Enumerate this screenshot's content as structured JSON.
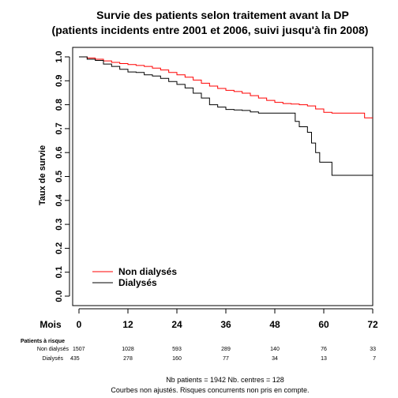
{
  "chart_data": {
    "type": "line",
    "title_line1": "Survie des patients selon traitement avant la DP",
    "title_line2": "(patients incidents entre 2001 et 2006, suivi jusqu'à fin 2008)",
    "ylabel": "Taux de survie",
    "xlabel": "Mois",
    "xlim": [
      0,
      72
    ],
    "ylim": [
      0,
      1
    ],
    "x_ticks": [
      "0",
      "12",
      "24",
      "36",
      "48",
      "60",
      "72"
    ],
    "x_tick_values": [
      0,
      12,
      24,
      36,
      48,
      60,
      72
    ],
    "y_ticks": [
      "0.0",
      "0.1",
      "0.2",
      "0.3",
      "0.4",
      "0.5",
      "0.6",
      "0.7",
      "0.8",
      "0.9",
      "1.0"
    ],
    "y_tick_values": [
      0,
      0.1,
      0.2,
      0.3,
      0.4,
      0.5,
      0.6,
      0.7,
      0.8,
      0.9,
      1.0
    ],
    "legend_position": "bottom-left",
    "series": [
      {
        "name": "Non dialysés",
        "color": "#ff0000",
        "step": true,
        "points": [
          [
            0,
            1.0
          ],
          [
            2,
            0.995
          ],
          [
            4,
            0.99
          ],
          [
            6,
            0.983
          ],
          [
            8,
            0.977
          ],
          [
            10,
            0.972
          ],
          [
            12,
            0.968
          ],
          [
            14,
            0.964
          ],
          [
            16,
            0.96
          ],
          [
            18,
            0.953
          ],
          [
            20,
            0.945
          ],
          [
            22,
            0.935
          ],
          [
            24,
            0.925
          ],
          [
            26,
            0.915
          ],
          [
            28,
            0.903
          ],
          [
            30,
            0.89
          ],
          [
            32,
            0.878
          ],
          [
            34,
            0.868
          ],
          [
            36,
            0.86
          ],
          [
            38,
            0.855
          ],
          [
            40,
            0.848
          ],
          [
            42,
            0.838
          ],
          [
            44,
            0.828
          ],
          [
            46,
            0.818
          ],
          [
            48,
            0.81
          ],
          [
            50,
            0.805
          ],
          [
            52,
            0.803
          ],
          [
            54,
            0.8
          ],
          [
            56,
            0.795
          ],
          [
            58,
            0.782
          ],
          [
            60,
            0.768
          ],
          [
            62,
            0.765
          ],
          [
            64,
            0.765
          ],
          [
            66,
            0.765
          ],
          [
            68,
            0.765
          ],
          [
            70,
            0.745
          ],
          [
            72,
            0.745
          ]
        ]
      },
      {
        "name": "Dialysés",
        "color": "#000000",
        "step": true,
        "points": [
          [
            0,
            1.0
          ],
          [
            2,
            0.99
          ],
          [
            4,
            0.985
          ],
          [
            6,
            0.97
          ],
          [
            8,
            0.96
          ],
          [
            10,
            0.948
          ],
          [
            12,
            0.937
          ],
          [
            14,
            0.935
          ],
          [
            16,
            0.925
          ],
          [
            18,
            0.92
          ],
          [
            20,
            0.91
          ],
          [
            22,
            0.897
          ],
          [
            24,
            0.885
          ],
          [
            26,
            0.87
          ],
          [
            28,
            0.848
          ],
          [
            30,
            0.828
          ],
          [
            32,
            0.8
          ],
          [
            34,
            0.79
          ],
          [
            36,
            0.78
          ],
          [
            38,
            0.778
          ],
          [
            40,
            0.776
          ],
          [
            42,
            0.77
          ],
          [
            44,
            0.765
          ],
          [
            46,
            0.765
          ],
          [
            48,
            0.765
          ],
          [
            50,
            0.765
          ],
          [
            52,
            0.765
          ],
          [
            53,
            0.73
          ],
          [
            54,
            0.708
          ],
          [
            56,
            0.685
          ],
          [
            57,
            0.64
          ],
          [
            58,
            0.6
          ],
          [
            59,
            0.56
          ],
          [
            61,
            0.56
          ],
          [
            62,
            0.505
          ],
          [
            72,
            0.505
          ]
        ]
      }
    ],
    "risk_table": {
      "header": "Patients à risque",
      "rows": [
        {
          "label": "Non dialysés",
          "values": [
            "1507",
            "1028",
            "593",
            "289",
            "140",
            "76",
            "33"
          ]
        },
        {
          "label": "Dialysés",
          "values": [
            "435",
            "278",
            "160",
            "77",
            "34",
            "13",
            "7"
          ]
        }
      ]
    },
    "footer_line1": "Nb patients = 1942     Nb. centres = 128",
    "footer_line2": "Courbes non ajustés. Risques concurrents non pris en compte."
  }
}
